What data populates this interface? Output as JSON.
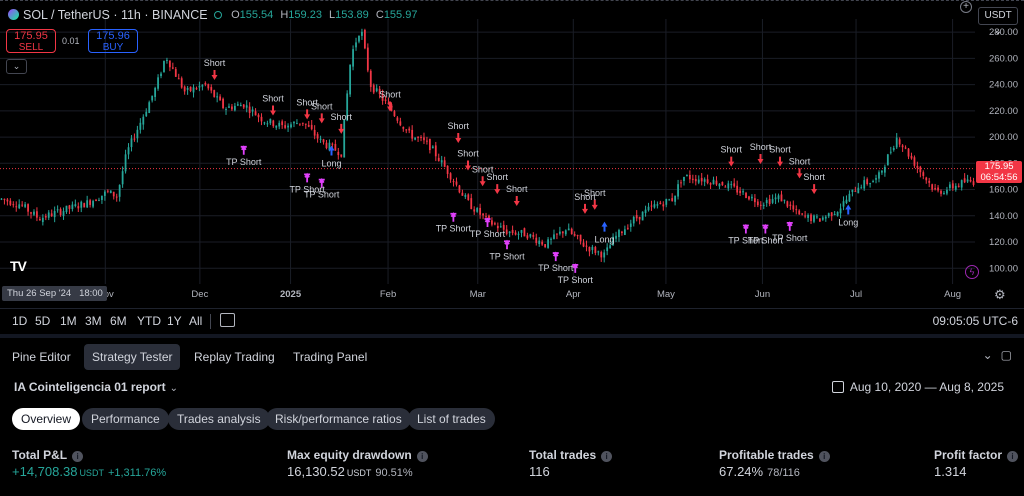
{
  "header": {
    "symbol": "SOL / TetherUS · 11h · BINANCE",
    "ohlc": {
      "o_label": "O",
      "o": "155.54",
      "h_label": "H",
      "h": "159.23",
      "l_label": "L",
      "l": "153.89",
      "c_label": "C",
      "c": "155.97"
    },
    "sell": {
      "price": "175.95",
      "label": "SELL"
    },
    "buy": {
      "price": "175.96",
      "label": "BUY"
    },
    "spread": "0.01",
    "currency": "USDT",
    "cursor_date": "Thu 26 Sep '24",
    "cursor_time": "18:00",
    "last_price": "175.95",
    "countdown": "06:54:56"
  },
  "chart_data": {
    "type": "candlestick",
    "price_axis": [
      "280.00",
      "260.00",
      "240.00",
      "220.00",
      "200.00",
      "180.00",
      "160.00",
      "140.00",
      "120.00",
      "100.00"
    ],
    "price_range": [
      88,
      290
    ],
    "time_axis": [
      {
        "label": "Nov",
        "i": 0
      },
      {
        "label": "Dec",
        "i": 1
      },
      {
        "label": "2025",
        "i": 2,
        "bold": true
      },
      {
        "label": "Feb",
        "i": 3
      },
      {
        "label": "Mar",
        "i": 4
      },
      {
        "label": "Apr",
        "i": 5
      },
      {
        "label": "May",
        "i": 6
      },
      {
        "label": "Jun",
        "i": 7
      },
      {
        "label": "Jul",
        "i": 8
      },
      {
        "label": "Aug",
        "i": 9
      }
    ],
    "price_path": [
      [
        0,
        153
      ],
      [
        0.02,
        149
      ],
      [
        0.04,
        138
      ],
      [
        0.06,
        143
      ],
      [
        0.09,
        150
      ],
      [
        0.11,
        158
      ],
      [
        0.12,
        155
      ],
      [
        0.13,
        188
      ],
      [
        0.16,
        238
      ],
      [
        0.17,
        262
      ],
      [
        0.19,
        234
      ],
      [
        0.21,
        240
      ],
      [
        0.23,
        222
      ],
      [
        0.25,
        225
      ],
      [
        0.27,
        213
      ],
      [
        0.29,
        208
      ],
      [
        0.31,
        212
      ],
      [
        0.33,
        196
      ],
      [
        0.35,
        188
      ],
      [
        0.36,
        262
      ],
      [
        0.37,
        284
      ],
      [
        0.38,
        240
      ],
      [
        0.4,
        222
      ],
      [
        0.42,
        202
      ],
      [
        0.44,
        194
      ],
      [
        0.46,
        173
      ],
      [
        0.48,
        150
      ],
      [
        0.5,
        136
      ],
      [
        0.52,
        128
      ],
      [
        0.54,
        126
      ],
      [
        0.56,
        118
      ],
      [
        0.58,
        130
      ],
      [
        0.6,
        117
      ],
      [
        0.62,
        110
      ],
      [
        0.63,
        123
      ],
      [
        0.65,
        137
      ],
      [
        0.67,
        147
      ],
      [
        0.69,
        153
      ],
      [
        0.7,
        170
      ],
      [
        0.72,
        168
      ],
      [
        0.74,
        165
      ],
      [
        0.76,
        158
      ],
      [
        0.78,
        150
      ],
      [
        0.8,
        154
      ],
      [
        0.82,
        140
      ],
      [
        0.84,
        137
      ],
      [
        0.86,
        145
      ],
      [
        0.88,
        163
      ],
      [
        0.9,
        168
      ],
      [
        0.92,
        200
      ],
      [
        0.94,
        178
      ],
      [
        0.96,
        158
      ],
      [
        0.97,
        160
      ],
      [
        0.99,
        166
      ]
    ],
    "last_price": 175.95,
    "signals": [
      {
        "label": "Short",
        "x": 0.22,
        "y": 245
      },
      {
        "label": "Short",
        "x": 0.28,
        "y": 218
      },
      {
        "label": "Short",
        "x": 0.315,
        "y": 215
      },
      {
        "label": "Short",
        "x": 0.33,
        "y": 212
      },
      {
        "label": "Short",
        "x": 0.35,
        "y": 204
      },
      {
        "label": "Short",
        "x": 0.4,
        "y": 221
      },
      {
        "label": "Short",
        "x": 0.47,
        "y": 197
      },
      {
        "label": "Short",
        "x": 0.48,
        "y": 176
      },
      {
        "label": "Short",
        "x": 0.495,
        "y": 164
      },
      {
        "label": "Short",
        "x": 0.51,
        "y": 158
      },
      {
        "label": "Short",
        "x": 0.53,
        "y": 149
      },
      {
        "label": "Short",
        "x": 0.6,
        "y": 143
      },
      {
        "label": "Short",
        "x": 0.61,
        "y": 146
      },
      {
        "label": "Short",
        "x": 0.75,
        "y": 179
      },
      {
        "label": "Short",
        "x": 0.78,
        "y": 181
      },
      {
        "label": "Short",
        "x": 0.8,
        "y": 179
      },
      {
        "label": "Short",
        "x": 0.82,
        "y": 170
      },
      {
        "label": "Short",
        "x": 0.835,
        "y": 158
      }
    ],
    "tp_signals": [
      {
        "label": "TP Short",
        "x": 0.25,
        "y": 188
      },
      {
        "label": "TP Short",
        "x": 0.315,
        "y": 167
      },
      {
        "label": "TP Short",
        "x": 0.33,
        "y": 163
      },
      {
        "label": "TP Short",
        "x": 0.465,
        "y": 137
      },
      {
        "label": "TP Short",
        "x": 0.5,
        "y": 133
      },
      {
        "label": "TP Short",
        "x": 0.52,
        "y": 116
      },
      {
        "label": "TP Short",
        "x": 0.57,
        "y": 107
      },
      {
        "label": "TP Short",
        "x": 0.59,
        "y": 98
      },
      {
        "label": "TP Short",
        "x": 0.765,
        "y": 128
      },
      {
        "label": "TP Short",
        "x": 0.785,
        "y": 128
      },
      {
        "label": "TP Short",
        "x": 0.81,
        "y": 130
      }
    ],
    "long_signals": [
      {
        "label": "Long",
        "x": 0.34,
        "y": 189
      },
      {
        "label": "Long",
        "x": 0.62,
        "y": 131
      },
      {
        "label": "Long",
        "x": 0.87,
        "y": 144
      }
    ]
  },
  "toolbar": {
    "timeframes": [
      "1D",
      "5D",
      "1M",
      "3M",
      "6M",
      "YTD",
      "1Y",
      "All"
    ],
    "clock": "09:05:05 UTC-6"
  },
  "panel": {
    "tabs": [
      "Pine Editor",
      "Strategy Tester",
      "Replay Trading",
      "Trading Panel"
    ],
    "active_tab": 1,
    "report": "IA Cointeligencia 01 report",
    "date_range": "Aug 10, 2020 — Aug 8, 2025",
    "subtabs": [
      "Overview",
      "Performance",
      "Trades analysis",
      "Risk/performance ratios",
      "List of trades"
    ],
    "active_subtab": 0,
    "metrics": {
      "pnl": {
        "label": "Total P&L",
        "value": "+14,708.38",
        "unit": "USDT",
        "sub": "+1,311.76%"
      },
      "drawdown": {
        "label": "Max equity drawdown",
        "value": "16,130.52",
        "unit": "USDT",
        "sub": "90.51%"
      },
      "trades": {
        "label": "Total trades",
        "value": "116"
      },
      "profitable": {
        "label": "Profitable trades",
        "value": "67.24%",
        "sub": "78/116"
      },
      "factor": {
        "label": "Profit factor",
        "value": "1.314"
      }
    }
  },
  "colors": {
    "up": "#26a69a",
    "down": "#f23645",
    "short": "#f23645",
    "long": "#2962ff",
    "tp": "#e040fb",
    "grid": "#1a1d26"
  }
}
